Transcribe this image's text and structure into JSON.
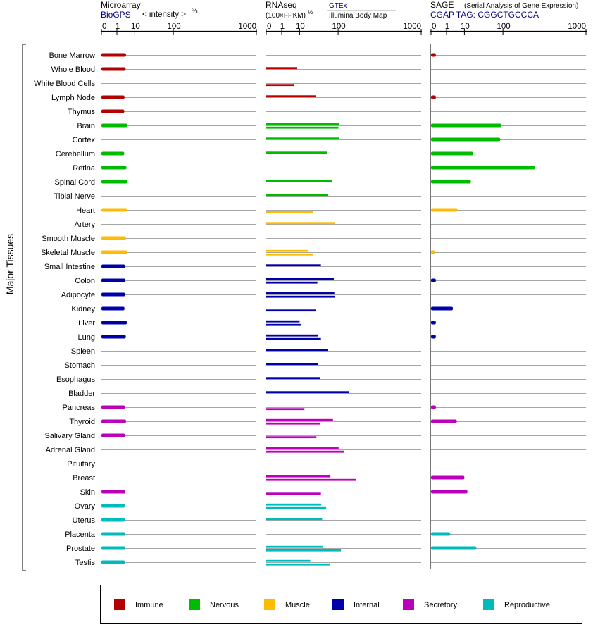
{
  "header": {
    "microarray": {
      "title": "Microarray",
      "source": "BioGPS",
      "unit": "< intensity >",
      "unit_sup": "⅔"
    },
    "rnaseq": {
      "title": "RNAseq",
      "unit": "(100×FPKM)",
      "unit_sup": "½",
      "source_gtex": "GTEx",
      "source_ibm": "Illumina Body Map"
    },
    "sage": {
      "title": "SAGE",
      "subtitle": "(Serial Analysis of Gene Expression)",
      "source": "CGAP TAG: CGGCTGCCCA"
    }
  },
  "y_group_label": "Major Tissues",
  "colors": {
    "Immune": "#b30000",
    "Nervous": "#00bb00",
    "Muscle": "#ffbb00",
    "Internal": "#0000aa",
    "Secretory": "#bb00bb",
    "Reproductive": "#00bbbb",
    "grid": "#888888",
    "text_blue": "#000080"
  },
  "legend": [
    "Immune",
    "Nervous",
    "Muscle",
    "Internal",
    "Secretory",
    "Reproductive"
  ],
  "chart_data": {
    "type": "bar",
    "scale": "power",
    "x_ticks": [
      0,
      1,
      10,
      100,
      1000
    ],
    "x_range": [
      0,
      1000
    ],
    "categories": [
      "Bone Marrow",
      "Whole Blood",
      "White Blood Cells",
      "Lymph Node",
      "Thymus",
      "Brain",
      "Cortex",
      "Cerebellum",
      "Retina",
      "Spinal Cord",
      "Tibial Nerve",
      "Heart",
      "Artery",
      "Smooth Muscle",
      "Skeletal Muscle",
      "Small Intestine",
      "Colon",
      "Adipocyte",
      "Kidney",
      "Liver",
      "Lung",
      "Spleen",
      "Stomach",
      "Esophagus",
      "Bladder",
      "Pancreas",
      "Thyroid",
      "Salivary Gland",
      "Adrenal Gland",
      "Pituitary",
      "Breast",
      "Skin",
      "Ovary",
      "Uterus",
      "Placenta",
      "Prostate",
      "Testis"
    ],
    "groups": [
      "Immune",
      "Immune",
      "Immune",
      "Immune",
      "Immune",
      "Nervous",
      "Nervous",
      "Nervous",
      "Nervous",
      "Nervous",
      "Nervous",
      "Muscle",
      "Muscle",
      "Muscle",
      "Muscle",
      "Internal",
      "Internal",
      "Internal",
      "Internal",
      "Internal",
      "Internal",
      "Internal",
      "Internal",
      "Internal",
      "Internal",
      "Secretory",
      "Secretory",
      "Secretory",
      "Secretory",
      "Secretory",
      "Secretory",
      "Secretory",
      "Reproductive",
      "Reproductive",
      "Reproductive",
      "Reproductive",
      "Reproductive"
    ],
    "series": [
      {
        "name": "Microarray (BioGPS)",
        "values": [
          4.0,
          3.8,
          null,
          3.3,
          3.2,
          4.6,
          null,
          3.2,
          4.2,
          4.6,
          null,
          4.6,
          null,
          4.0,
          4.6,
          3.5,
          3.7,
          3.6,
          3.3,
          4.4,
          3.9,
          null,
          null,
          null,
          null,
          3.4,
          4.0,
          3.5,
          null,
          null,
          null,
          3.7,
          3.4,
          3.4,
          3.7,
          3.7,
          3.4
        ]
      },
      {
        "name": "RNAseq (GTEx)",
        "values": [
          null,
          8,
          null,
          33,
          null,
          103,
          103,
          60,
          null,
          77,
          64,
          null,
          86,
          null,
          20,
          44,
          83,
          85,
          null,
          10,
          37,
          64,
          37,
          42,
          153,
          null,
          80,
          null,
          102,
          null,
          71,
          null,
          45,
          47,
          null,
          50,
          23
        ]
      },
      {
        "name": "RNAseq (Illumina Body Map)",
        "values": [
          null,
          null,
          6,
          null,
          null,
          101,
          null,
          null,
          null,
          null,
          null,
          28,
          null,
          null,
          28,
          null,
          36,
          86,
          33,
          11,
          44,
          null,
          null,
          null,
          null,
          15,
          43,
          34,
          125,
          null,
          195,
          44,
          58,
          null,
          null,
          112,
          70
        ]
      },
      {
        "name": "SAGE (CGAP)",
        "values": [
          0.03,
          null,
          null,
          0.03,
          null,
          94,
          89,
          20,
          300,
          17,
          null,
          5,
          null,
          null,
          0.02,
          null,
          0.03,
          null,
          2.8,
          0.03,
          0.03,
          null,
          null,
          null,
          null,
          0.03,
          4.6,
          null,
          null,
          null,
          10,
          13,
          null,
          null,
          1.9,
          25,
          null
        ]
      }
    ]
  }
}
